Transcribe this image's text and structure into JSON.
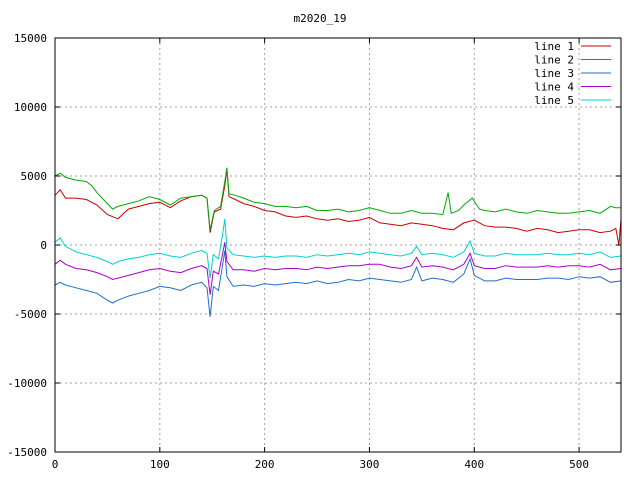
{
  "chart_data": {
    "type": "line",
    "title": "m2020_19",
    "xlim": [
      0,
      540
    ],
    "ylim": [
      -15000,
      15000
    ],
    "xticks": [
      0,
      100,
      200,
      300,
      400,
      500
    ],
    "yticks": [
      -15000,
      -10000,
      -5000,
      0,
      5000,
      10000,
      15000
    ],
    "grid": true,
    "legend_position": "top-right",
    "series": [
      {
        "name": "line 1",
        "color": "#cc0000",
        "points": [
          [
            0,
            3600
          ],
          [
            5,
            4000
          ],
          [
            10,
            3400
          ],
          [
            20,
            3400
          ],
          [
            30,
            3300
          ],
          [
            40,
            2900
          ],
          [
            50,
            2200
          ],
          [
            60,
            1900
          ],
          [
            70,
            2600
          ],
          [
            80,
            2800
          ],
          [
            90,
            3000
          ],
          [
            100,
            3100
          ],
          [
            110,
            2700
          ],
          [
            120,
            3200
          ],
          [
            130,
            3500
          ],
          [
            140,
            3600
          ],
          [
            145,
            3400
          ],
          [
            148,
            900
          ],
          [
            152,
            2400
          ],
          [
            158,
            2600
          ],
          [
            162,
            4300
          ],
          [
            164,
            5500
          ],
          [
            166,
            3500
          ],
          [
            172,
            3300
          ],
          [
            180,
            3000
          ],
          [
            190,
            2800
          ],
          [
            200,
            2500
          ],
          [
            210,
            2400
          ],
          [
            220,
            2100
          ],
          [
            230,
            2000
          ],
          [
            240,
            2100
          ],
          [
            250,
            1900
          ],
          [
            260,
            1800
          ],
          [
            270,
            1900
          ],
          [
            280,
            1700
          ],
          [
            290,
            1800
          ],
          [
            300,
            2000
          ],
          [
            310,
            1600
          ],
          [
            320,
            1500
          ],
          [
            330,
            1400
          ],
          [
            340,
            1600
          ],
          [
            350,
            1500
          ],
          [
            360,
            1400
          ],
          [
            370,
            1200
          ],
          [
            380,
            1100
          ],
          [
            390,
            1600
          ],
          [
            400,
            1800
          ],
          [
            410,
            1400
          ],
          [
            420,
            1300
          ],
          [
            430,
            1300
          ],
          [
            440,
            1200
          ],
          [
            450,
            1000
          ],
          [
            460,
            1200
          ],
          [
            470,
            1100
          ],
          [
            480,
            900
          ],
          [
            490,
            1000
          ],
          [
            500,
            1100
          ],
          [
            510,
            1100
          ],
          [
            520,
            900
          ],
          [
            530,
            1000
          ],
          [
            535,
            1200
          ],
          [
            538,
            0
          ],
          [
            540,
            1900
          ]
        ]
      },
      {
        "name": "line 2",
        "color": "#00aa00",
        "points": [
          [
            0,
            5000
          ],
          [
            5,
            5200
          ],
          [
            10,
            4900
          ],
          [
            20,
            4700
          ],
          [
            30,
            4600
          ],
          [
            35,
            4300
          ],
          [
            40,
            3800
          ],
          [
            50,
            3000
          ],
          [
            55,
            2600
          ],
          [
            60,
            2800
          ],
          [
            70,
            3000
          ],
          [
            80,
            3200
          ],
          [
            90,
            3500
          ],
          [
            100,
            3300
          ],
          [
            110,
            2900
          ],
          [
            120,
            3400
          ],
          [
            130,
            3500
          ],
          [
            140,
            3600
          ],
          [
            145,
            3400
          ],
          [
            148,
            1100
          ],
          [
            152,
            2500
          ],
          [
            158,
            2800
          ],
          [
            162,
            4600
          ],
          [
            164,
            5600
          ],
          [
            166,
            3700
          ],
          [
            172,
            3600
          ],
          [
            180,
            3400
          ],
          [
            190,
            3100
          ],
          [
            200,
            3000
          ],
          [
            210,
            2800
          ],
          [
            220,
            2800
          ],
          [
            230,
            2700
          ],
          [
            240,
            2800
          ],
          [
            250,
            2500
          ],
          [
            260,
            2500
          ],
          [
            270,
            2600
          ],
          [
            280,
            2400
          ],
          [
            290,
            2500
          ],
          [
            300,
            2700
          ],
          [
            310,
            2500
          ],
          [
            320,
            2300
          ],
          [
            330,
            2300
          ],
          [
            340,
            2500
          ],
          [
            350,
            2300
          ],
          [
            360,
            2300
          ],
          [
            370,
            2200
          ],
          [
            375,
            3800
          ],
          [
            378,
            2300
          ],
          [
            385,
            2500
          ],
          [
            390,
            2900
          ],
          [
            398,
            3400
          ],
          [
            405,
            2600
          ],
          [
            410,
            2500
          ],
          [
            420,
            2400
          ],
          [
            430,
            2600
          ],
          [
            440,
            2400
          ],
          [
            450,
            2300
          ],
          [
            460,
            2500
          ],
          [
            470,
            2400
          ],
          [
            480,
            2300
          ],
          [
            490,
            2300
          ],
          [
            500,
            2400
          ],
          [
            510,
            2500
          ],
          [
            520,
            2300
          ],
          [
            530,
            2800
          ],
          [
            535,
            2700
          ],
          [
            540,
            2700
          ]
        ]
      },
      {
        "name": "line 3",
        "color": "#1f6fd0",
        "points": [
          [
            0,
            -2900
          ],
          [
            5,
            -2700
          ],
          [
            10,
            -2900
          ],
          [
            20,
            -3100
          ],
          [
            30,
            -3300
          ],
          [
            40,
            -3500
          ],
          [
            50,
            -4000
          ],
          [
            55,
            -4200
          ],
          [
            60,
            -4000
          ],
          [
            70,
            -3700
          ],
          [
            80,
            -3500
          ],
          [
            90,
            -3300
          ],
          [
            100,
            -3000
          ],
          [
            110,
            -3100
          ],
          [
            120,
            -3300
          ],
          [
            130,
            -2900
          ],
          [
            140,
            -2700
          ],
          [
            145,
            -3100
          ],
          [
            148,
            -5200
          ],
          [
            151,
            -3000
          ],
          [
            156,
            -3300
          ],
          [
            160,
            -1400
          ],
          [
            162,
            -400
          ],
          [
            164,
            -2300
          ],
          [
            170,
            -3000
          ],
          [
            180,
            -2900
          ],
          [
            190,
            -3000
          ],
          [
            200,
            -2800
          ],
          [
            210,
            -2900
          ],
          [
            220,
            -2800
          ],
          [
            230,
            -2700
          ],
          [
            240,
            -2800
          ],
          [
            250,
            -2600
          ],
          [
            260,
            -2800
          ],
          [
            270,
            -2700
          ],
          [
            280,
            -2500
          ],
          [
            290,
            -2600
          ],
          [
            300,
            -2400
          ],
          [
            310,
            -2500
          ],
          [
            320,
            -2600
          ],
          [
            330,
            -2700
          ],
          [
            340,
            -2500
          ],
          [
            345,
            -1600
          ],
          [
            350,
            -2600
          ],
          [
            360,
            -2400
          ],
          [
            370,
            -2500
          ],
          [
            380,
            -2700
          ],
          [
            390,
            -2100
          ],
          [
            396,
            -1000
          ],
          [
            400,
            -2200
          ],
          [
            410,
            -2600
          ],
          [
            420,
            -2600
          ],
          [
            430,
            -2400
          ],
          [
            440,
            -2500
          ],
          [
            450,
            -2500
          ],
          [
            460,
            -2500
          ],
          [
            470,
            -2400
          ],
          [
            480,
            -2400
          ],
          [
            490,
            -2500
          ],
          [
            500,
            -2300
          ],
          [
            510,
            -2400
          ],
          [
            520,
            -2300
          ],
          [
            530,
            -2700
          ],
          [
            540,
            -2600
          ]
        ]
      },
      {
        "name": "line 4",
        "color": "#aa00cc",
        "points": [
          [
            0,
            -1400
          ],
          [
            5,
            -1100
          ],
          [
            10,
            -1400
          ],
          [
            20,
            -1700
          ],
          [
            30,
            -1800
          ],
          [
            40,
            -2000
          ],
          [
            50,
            -2300
          ],
          [
            55,
            -2500
          ],
          [
            60,
            -2400
          ],
          [
            70,
            -2200
          ],
          [
            80,
            -2000
          ],
          [
            90,
            -1800
          ],
          [
            100,
            -1700
          ],
          [
            110,
            -1900
          ],
          [
            120,
            -2000
          ],
          [
            130,
            -1700
          ],
          [
            140,
            -1500
          ],
          [
            145,
            -1700
          ],
          [
            148,
            -3600
          ],
          [
            151,
            -1900
          ],
          [
            156,
            -2100
          ],
          [
            160,
            -600
          ],
          [
            162,
            200
          ],
          [
            164,
            -1200
          ],
          [
            170,
            -1800
          ],
          [
            180,
            -1800
          ],
          [
            190,
            -1900
          ],
          [
            200,
            -1700
          ],
          [
            210,
            -1800
          ],
          [
            220,
            -1700
          ],
          [
            230,
            -1700
          ],
          [
            240,
            -1800
          ],
          [
            250,
            -1600
          ],
          [
            260,
            -1700
          ],
          [
            270,
            -1600
          ],
          [
            280,
            -1500
          ],
          [
            290,
            -1500
          ],
          [
            300,
            -1400
          ],
          [
            310,
            -1400
          ],
          [
            320,
            -1600
          ],
          [
            330,
            -1700
          ],
          [
            340,
            -1500
          ],
          [
            345,
            -900
          ],
          [
            350,
            -1600
          ],
          [
            360,
            -1500
          ],
          [
            370,
            -1600
          ],
          [
            380,
            -1800
          ],
          [
            390,
            -1400
          ],
          [
            396,
            -600
          ],
          [
            400,
            -1500
          ],
          [
            410,
            -1700
          ],
          [
            420,
            -1700
          ],
          [
            430,
            -1500
          ],
          [
            440,
            -1600
          ],
          [
            450,
            -1600
          ],
          [
            460,
            -1600
          ],
          [
            470,
            -1500
          ],
          [
            480,
            -1600
          ],
          [
            490,
            -1500
          ],
          [
            500,
            -1500
          ],
          [
            510,
            -1600
          ],
          [
            520,
            -1400
          ],
          [
            530,
            -1800
          ],
          [
            540,
            -1700
          ]
        ]
      },
      {
        "name": "line 5",
        "color": "#00d0d0",
        "points": [
          [
            0,
            200
          ],
          [
            5,
            500
          ],
          [
            10,
            -100
          ],
          [
            20,
            -500
          ],
          [
            30,
            -700
          ],
          [
            40,
            -900
          ],
          [
            50,
            -1200
          ],
          [
            55,
            -1400
          ],
          [
            60,
            -1200
          ],
          [
            70,
            -1000
          ],
          [
            80,
            -900
          ],
          [
            90,
            -700
          ],
          [
            100,
            -600
          ],
          [
            110,
            -800
          ],
          [
            120,
            -900
          ],
          [
            130,
            -600
          ],
          [
            140,
            -400
          ],
          [
            145,
            -600
          ],
          [
            148,
            -2400
          ],
          [
            151,
            -700
          ],
          [
            156,
            -1000
          ],
          [
            160,
            800
          ],
          [
            162,
            1900
          ],
          [
            164,
            -200
          ],
          [
            170,
            -700
          ],
          [
            180,
            -800
          ],
          [
            190,
            -900
          ],
          [
            200,
            -800
          ],
          [
            210,
            -900
          ],
          [
            220,
            -800
          ],
          [
            230,
            -800
          ],
          [
            240,
            -900
          ],
          [
            250,
            -700
          ],
          [
            260,
            -800
          ],
          [
            270,
            -700
          ],
          [
            280,
            -600
          ],
          [
            290,
            -700
          ],
          [
            300,
            -500
          ],
          [
            310,
            -600
          ],
          [
            320,
            -700
          ],
          [
            330,
            -800
          ],
          [
            340,
            -600
          ],
          [
            345,
            -100
          ],
          [
            350,
            -700
          ],
          [
            360,
            -600
          ],
          [
            370,
            -700
          ],
          [
            380,
            -900
          ],
          [
            390,
            -500
          ],
          [
            396,
            300
          ],
          [
            400,
            -600
          ],
          [
            410,
            -800
          ],
          [
            420,
            -800
          ],
          [
            430,
            -600
          ],
          [
            440,
            -700
          ],
          [
            450,
            -700
          ],
          [
            460,
            -700
          ],
          [
            470,
            -600
          ],
          [
            480,
            -700
          ],
          [
            490,
            -700
          ],
          [
            500,
            -600
          ],
          [
            510,
            -700
          ],
          [
            520,
            -500
          ],
          [
            530,
            -900
          ],
          [
            540,
            -800
          ]
        ]
      }
    ]
  }
}
